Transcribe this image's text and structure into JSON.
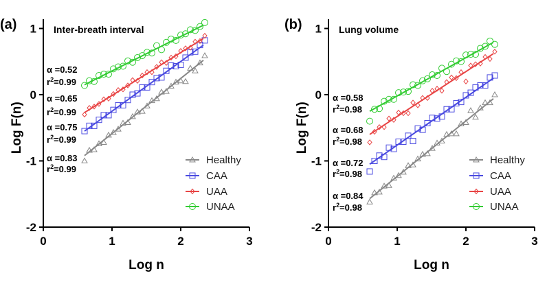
{
  "chart_data": [
    {
      "type": "scatter",
      "panel_label": "(a)",
      "title": "Inter-breath interval",
      "xlabel": "Log n",
      "ylabel": "Log F(n)",
      "xlim": [
        0,
        3
      ],
      "ylim": [
        -2,
        1.1
      ],
      "xticks": [
        "0",
        "1",
        "2",
        "3"
      ],
      "yticks": [
        "-2",
        "-1",
        "0",
        "1"
      ],
      "grid": false,
      "legend_position": "bottom-right",
      "x": [
        0.6,
        0.67,
        0.74,
        0.81,
        0.88,
        0.95,
        1.02,
        1.09,
        1.16,
        1.23,
        1.3,
        1.37,
        1.44,
        1.51,
        1.58,
        1.65,
        1.72,
        1.79,
        1.86,
        1.93,
        2.0,
        2.07,
        2.14,
        2.21,
        2.28,
        2.35
      ],
      "series": [
        {
          "name": "Healthy",
          "color": "#888888",
          "marker": "triangle",
          "alpha": "0.83",
          "r2": "0.99",
          "fit": {
            "x": [
              0.6,
              2.33
            ],
            "y": [
              -0.92,
              0.52
            ]
          },
          "values": [
            -1.0,
            -0.84,
            -0.83,
            -0.74,
            -0.72,
            -0.61,
            -0.57,
            -0.52,
            -0.43,
            -0.42,
            -0.33,
            -0.26,
            -0.25,
            -0.17,
            -0.09,
            -0.06,
            0.04,
            0.05,
            0.13,
            0.19,
            0.21,
            0.2,
            0.4,
            0.36,
            0.48,
            0.59
          ]
        },
        {
          "name": "CAA",
          "color": "#4a4ae0",
          "marker": "square",
          "alpha": "0.75",
          "r2": "0.99",
          "fit": {
            "x": [
              0.6,
              2.33
            ],
            "y": [
              -0.55,
              0.75
            ]
          },
          "values": [
            -0.55,
            -0.47,
            -0.47,
            -0.38,
            -0.31,
            -0.31,
            -0.23,
            -0.16,
            -0.16,
            -0.08,
            0.0,
            0.02,
            0.11,
            0.11,
            0.19,
            0.25,
            0.26,
            0.36,
            0.44,
            0.43,
            0.45,
            0.56,
            0.64,
            0.65,
            0.75,
            0.82
          ]
        },
        {
          "name": "UAA",
          "color": "#e84444",
          "marker": "diamond",
          "alpha": "0.65",
          "r2": "0.99",
          "fit": {
            "x": [
              0.6,
              2.33
            ],
            "y": [
              -0.27,
              0.85
            ]
          },
          "values": [
            -0.3,
            -0.2,
            -0.18,
            -0.14,
            -0.07,
            -0.06,
            0.01,
            0.07,
            0.08,
            0.14,
            0.22,
            0.21,
            0.29,
            0.34,
            0.34,
            0.42,
            0.49,
            0.48,
            0.56,
            0.58,
            0.66,
            0.7,
            0.71,
            0.8,
            0.81,
            0.89
          ]
        },
        {
          "name": "UNAA",
          "color": "#33cc33",
          "marker": "circle",
          "alpha": "0.52",
          "r2": "0.99",
          "fit": {
            "x": [
              0.6,
              2.33
            ],
            "y": [
              0.15,
              1.05
            ]
          },
          "values": [
            0.14,
            0.21,
            0.2,
            0.29,
            0.31,
            0.31,
            0.39,
            0.42,
            0.43,
            0.51,
            0.49,
            0.56,
            0.59,
            0.64,
            0.63,
            0.74,
            0.68,
            0.79,
            0.84,
            0.82,
            0.9,
            0.92,
            0.98,
            0.97,
            1.03,
            1.09
          ]
        }
      ]
    },
    {
      "type": "scatter",
      "panel_label": "(b)",
      "title": "Lung volume",
      "xlabel": "Log n",
      "ylabel": "Log F(n)",
      "xlim": [
        0,
        3
      ],
      "ylim": [
        -2,
        1.1
      ],
      "xticks": [
        "0",
        "1",
        "2",
        "3"
      ],
      "yticks": [
        "-2",
        "-1",
        "0",
        "1"
      ],
      "grid": false,
      "legend_position": "bottom-right",
      "x": [
        0.6,
        0.67,
        0.74,
        0.81,
        0.88,
        0.95,
        1.02,
        1.09,
        1.16,
        1.23,
        1.3,
        1.37,
        1.44,
        1.51,
        1.58,
        1.65,
        1.72,
        1.79,
        1.86,
        1.93,
        2.0,
        2.07,
        2.14,
        2.21,
        2.28,
        2.35,
        2.42
      ],
      "series": [
        {
          "name": "Healthy",
          "color": "#888888",
          "marker": "triangle",
          "alpha": "0.84",
          "r2": "0.98",
          "fit": {
            "x": [
              0.6,
              2.4
            ],
            "y": [
              -1.57,
              -0.06
            ]
          },
          "values": [
            -1.62,
            -1.48,
            -1.47,
            -1.38,
            -1.37,
            -1.26,
            -1.22,
            -1.17,
            -1.07,
            -1.06,
            -0.97,
            -0.9,
            -0.89,
            -0.81,
            -0.73,
            -0.7,
            -0.6,
            -0.59,
            -0.59,
            -0.44,
            -0.42,
            -0.24,
            -0.34,
            -0.2,
            -0.12,
            -0.12,
            0.0
          ]
        },
        {
          "name": "CAA",
          "color": "#4a4ae0",
          "marker": "square",
          "alpha": "0.72",
          "r2": "0.98",
          "fit": {
            "x": [
              0.6,
              2.4
            ],
            "y": [
              -1.05,
              0.25
            ]
          },
          "values": [
            -1.16,
            -1.0,
            -0.92,
            -0.94,
            -0.8,
            -0.82,
            -0.71,
            -0.71,
            -0.62,
            -0.7,
            -0.51,
            -0.53,
            -0.43,
            -0.35,
            -0.36,
            -0.33,
            -0.22,
            -0.22,
            -0.13,
            -0.11,
            -0.01,
            0.03,
            0.11,
            0.14,
            0.14,
            0.26,
            0.29
          ]
        },
        {
          "name": "UAA",
          "color": "#e84444",
          "marker": "diamond",
          "alpha": "0.68",
          "r2": "0.98",
          "fit": {
            "x": [
              0.6,
              2.4
            ],
            "y": [
              -0.6,
              0.62
            ]
          },
          "values": [
            -0.72,
            -0.56,
            -0.49,
            -0.49,
            -0.36,
            -0.38,
            -0.27,
            -0.28,
            -0.28,
            -0.12,
            -0.16,
            -0.05,
            -0.05,
            0.06,
            0.09,
            0.06,
            0.19,
            0.26,
            0.25,
            0.34,
            0.2,
            0.44,
            0.46,
            0.47,
            0.57,
            0.54,
            0.65
          ]
        },
        {
          "name": "UNAA",
          "color": "#33cc33",
          "marker": "circle",
          "alpha": "0.58",
          "r2": "0.98",
          "fit": {
            "x": [
              0.6,
              2.4
            ],
            "y": [
              -0.25,
              0.79
            ]
          },
          "values": [
            -0.4,
            -0.22,
            -0.21,
            -0.1,
            -0.07,
            -0.07,
            0.03,
            0.04,
            0.05,
            0.15,
            0.14,
            0.21,
            0.24,
            0.3,
            0.29,
            0.4,
            0.35,
            0.46,
            0.51,
            0.5,
            0.6,
            0.61,
            0.61,
            0.7,
            0.73,
            0.81,
            0.76
          ]
        }
      ]
    }
  ]
}
